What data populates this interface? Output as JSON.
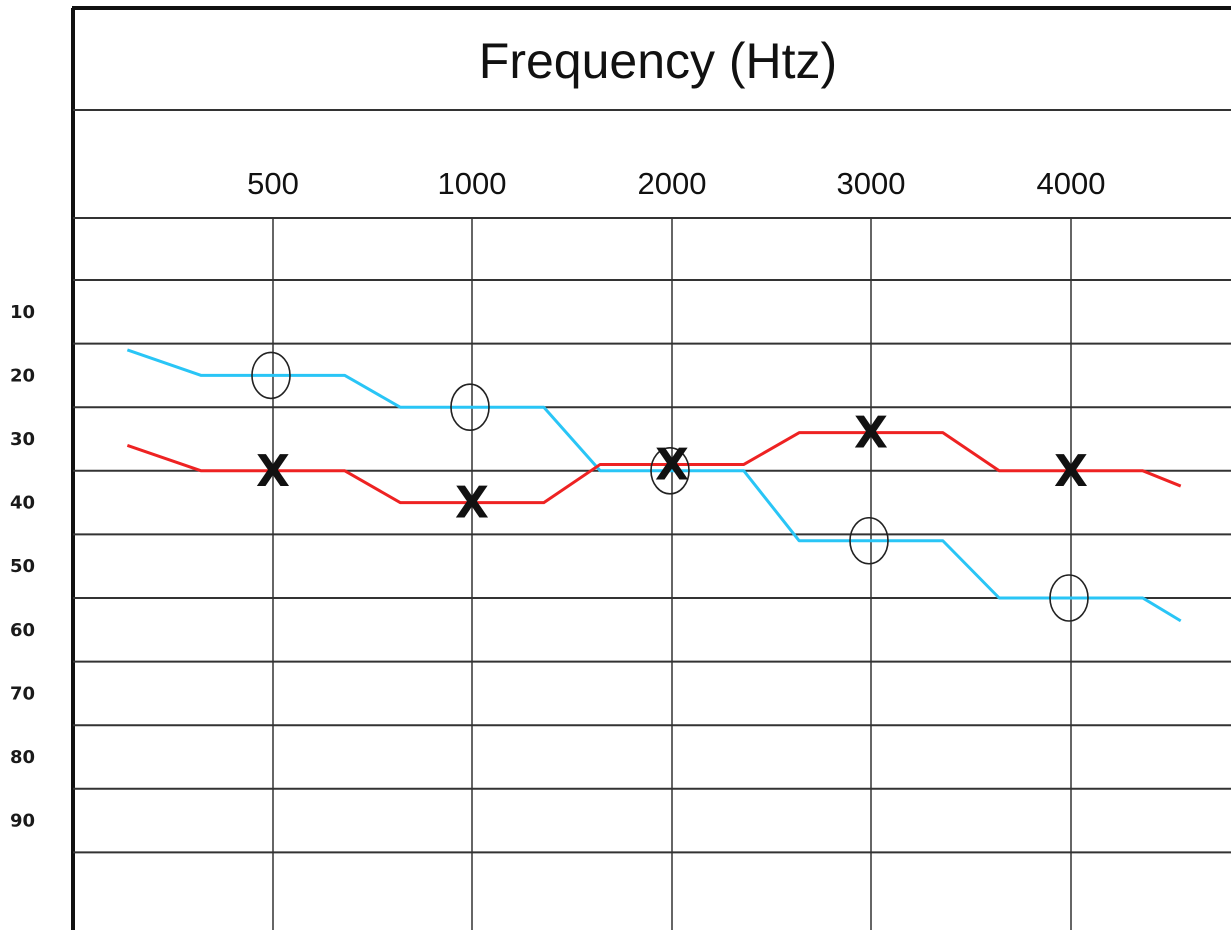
{
  "chart_data": {
    "type": "line",
    "title": "Frequency (Htz)",
    "x_ticks": [
      "500",
      "1000",
      "2000",
      "3000",
      "4000"
    ],
    "y_ticks": [
      "10",
      "20",
      "30",
      "40",
      "50",
      "60",
      "70",
      "80",
      "90"
    ],
    "y_inverted": true,
    "grid": true,
    "series": [
      {
        "marker": "O",
        "color": "#29c5f6",
        "marker_points": [
          {
            "x": "500",
            "y": 20
          },
          {
            "x": "1000",
            "y": 25
          },
          {
            "x": "2000",
            "y": 35
          },
          {
            "x": "3000",
            "y": 46
          },
          {
            "x": "4000",
            "y": 55
          }
        ]
      },
      {
        "marker": "X",
        "color": "#ee2222",
        "marker_points": [
          {
            "x": "500",
            "y": 35
          },
          {
            "x": "1000",
            "y": 40
          },
          {
            "x": "2000",
            "y": 34
          },
          {
            "x": "3000",
            "y": 29
          },
          {
            "x": "4000",
            "y": 35
          }
        ]
      }
    ]
  }
}
